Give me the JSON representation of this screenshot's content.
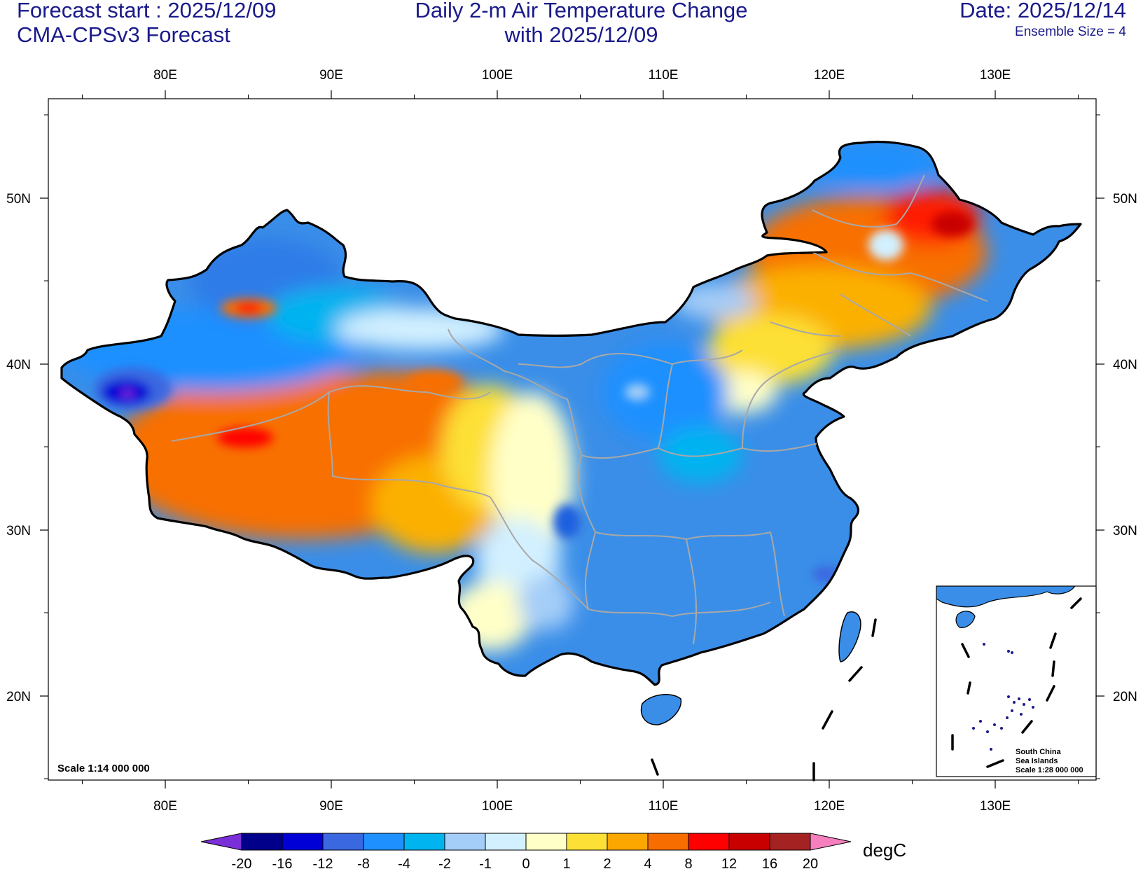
{
  "header": {
    "forecast_start": "Forecast start : 2025/12/09",
    "model": "CMA-CPSv3 Forecast",
    "title_line1": "Daily 2-m Air Temperature Change",
    "title_line2": "with 2025/12/09",
    "date": "Date: 2025/12/14",
    "ensemble": "Ensemble Size = 4"
  },
  "axes": {
    "lon_labels": [
      "80E",
      "90E",
      "100E",
      "110E",
      "120E",
      "130E"
    ],
    "lat_labels": [
      "50N",
      "40N",
      "30N",
      "20N"
    ]
  },
  "map": {
    "scale_text": "Scale 1:14 000 000",
    "inset": {
      "line1": "South China",
      "line2": "Sea Islands",
      "line3": "Scale 1:28 000 000"
    }
  },
  "colorbar": {
    "unit": "degC",
    "labels": [
      "-20",
      "-16",
      "-12",
      "-8",
      "-4",
      "-2",
      "-1",
      "0",
      "1",
      "2",
      "4",
      "8",
      "12",
      "16",
      "20"
    ],
    "colors": [
      "#7b2fd9",
      "#00008b",
      "#0000d6",
      "#3a68e0",
      "#1e90ff",
      "#00b4f0",
      "#a4cdf8",
      "#d2f0ff",
      "#ffffc8",
      "#fde035",
      "#fba700",
      "#f86d00",
      "#ff0000",
      "#c80000",
      "#a52222",
      "#f57fbf"
    ]
  },
  "colors": {
    "title": "#1a1a8a",
    "border": "#000000",
    "province": "#a8a8a8"
  }
}
